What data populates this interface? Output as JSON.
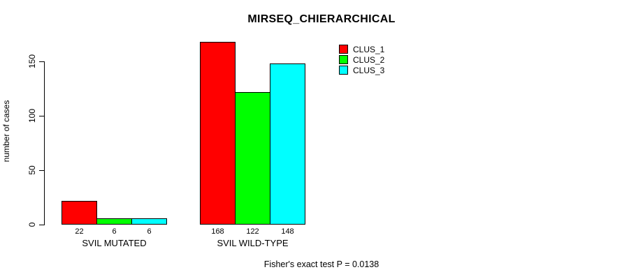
{
  "chart_data": {
    "type": "bar",
    "title": "MIRSEQ_CHIERARCHICAL",
    "xlabel": "",
    "ylabel": "number of cases",
    "categories": [
      "SVIL MUTATED",
      "SVIL WILD-TYPE"
    ],
    "series": [
      {
        "name": "CLUS_1",
        "color": "#ff0000",
        "values": [
          22,
          168
        ]
      },
      {
        "name": "CLUS_2",
        "color": "#00ff00",
        "values": [
          6,
          122
        ]
      },
      {
        "name": "CLUS_3",
        "color": "#00ffff",
        "values": [
          6,
          148
        ]
      }
    ],
    "bar_labels": [
      [
        "22",
        "6",
        "6"
      ],
      [
        "168",
        "122",
        "148"
      ]
    ],
    "yticks": [
      "0",
      "50",
      "100",
      "150"
    ],
    "ylim": [
      0,
      175
    ],
    "grid": false,
    "legend_position": "top-right",
    "footnote": "Fisher's exact test P = 0.0138",
    "background_color": "#ffffff",
    "axis_color": "#000000"
  }
}
